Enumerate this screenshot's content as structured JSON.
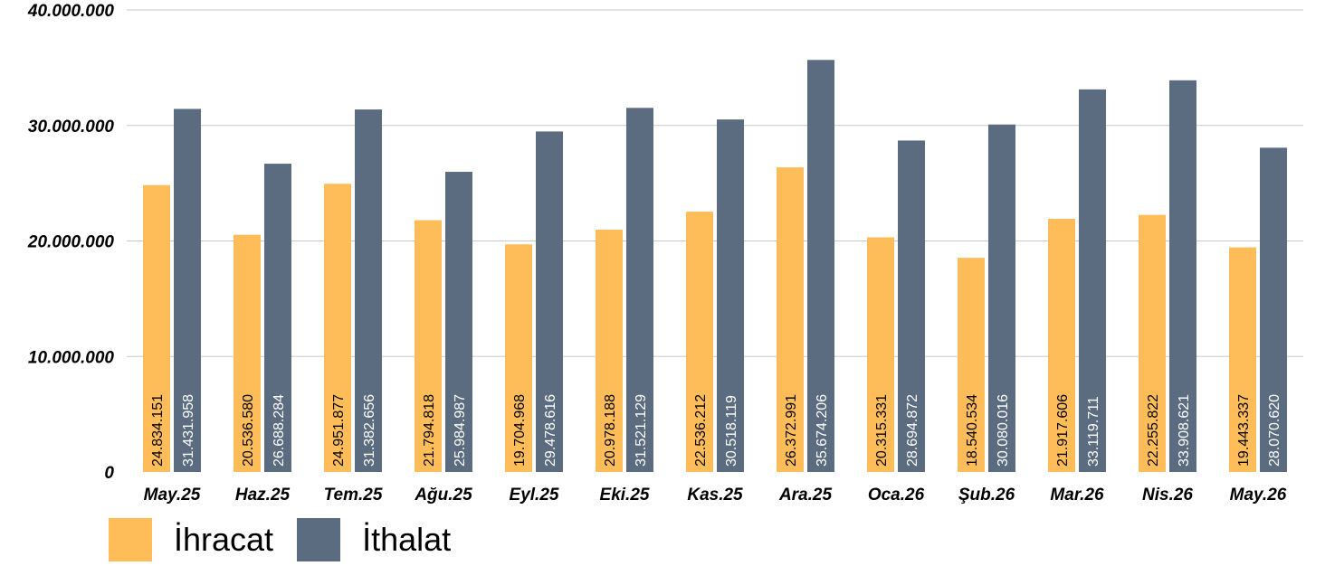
{
  "chart_data": {
    "type": "bar",
    "title": "",
    "xlabel": "",
    "ylabel": "",
    "ylim": [
      0,
      40000000
    ],
    "yticks": [
      0,
      10000000,
      20000000,
      30000000,
      40000000
    ],
    "ytick_labels": [
      "0",
      "10.000.000",
      "20.000.000",
      "30.000.000",
      "40.000.000"
    ],
    "grid": true,
    "legend_position": "bottom-left",
    "categories": [
      "May.25",
      "Haz.25",
      "Tem.25",
      "Ağu.25",
      "Eyl.25",
      "Eki.25",
      "Kas.25",
      "Ara.25",
      "Oca.26",
      "Şub.26",
      "Mar.26",
      "Nis.26",
      "May.26"
    ],
    "series": [
      {
        "name": "İhracat",
        "color": "#FFBD59",
        "label_color": "#000000",
        "values": [
          24834151,
          20536580,
          24951877,
          21794818,
          19704968,
          20978188,
          22536212,
          26372991,
          20315331,
          18540534,
          21917606,
          22255822,
          19443337
        ],
        "labels": [
          "24.834.151",
          "20.536.580",
          "24.951.877",
          "21.794.818",
          "19.704.968",
          "20.978.188",
          "22.536.212",
          "26.372.991",
          "20.315.331",
          "18.540.534",
          "21.917.606",
          "22.255.822",
          "19.443.337"
        ]
      },
      {
        "name": "İthalat",
        "color": "#5B6B80",
        "label_color": "#FFFFFF",
        "values": [
          31431958,
          26688284,
          31382656,
          25984987,
          29478616,
          31521129,
          30518119,
          35674206,
          28694872,
          30080016,
          33119711,
          33908621,
          28070620
        ],
        "labels": [
          "31.431.958",
          "26.688.284",
          "31.382.656",
          "25.984.987",
          "29.478.616",
          "31.521.129",
          "30.518.119",
          "35.674.206",
          "28.694.872",
          "30.080.016",
          "33.119.711",
          "33.908.621",
          "28.070.620"
        ]
      }
    ]
  }
}
